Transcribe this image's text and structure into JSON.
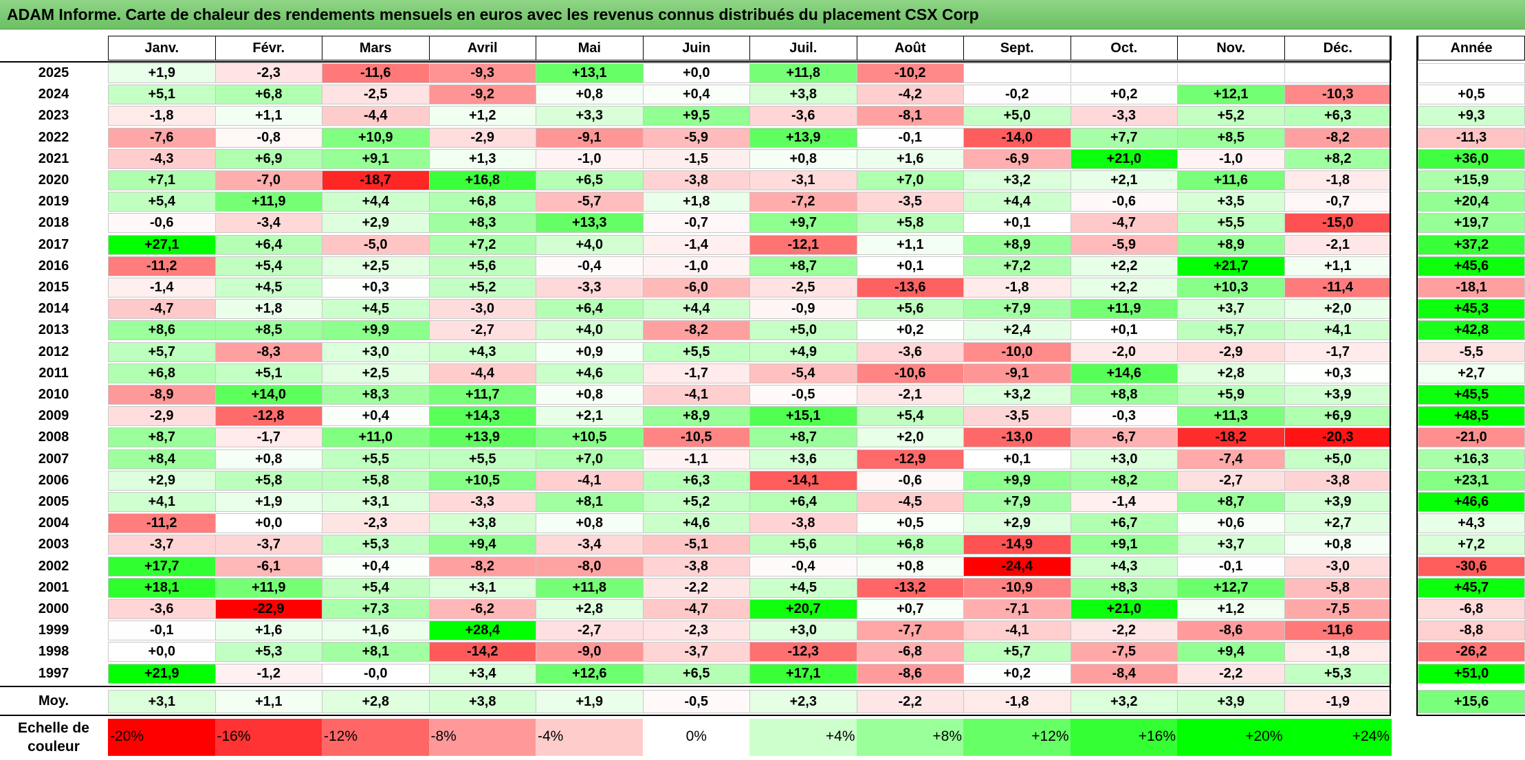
{
  "title": "ADAM Informe. Carte de chaleur des rendements mensuels en euros avec les revenus connus distribués du placement CSX Corp",
  "colors": {
    "title_bg": "#7acb71",
    "negative": "#ff0000",
    "positive": "#00ff00",
    "neutral": "#ffffff"
  },
  "chart_data": {
    "type": "heatmap",
    "title": "ADAM Informe. Carte de chaleur des rendements mensuels en euros avec les revenus connus distribués du placement CSX Corp",
    "months": [
      "Janv.",
      "Févr.",
      "Mars",
      "Avril",
      "Mai",
      "Juin",
      "Juil.",
      "Août",
      "Sept.",
      "Oct.",
      "Nov.",
      "Déc."
    ],
    "year_column_label": "Année",
    "average_row_label": "Moy.",
    "rows": [
      {
        "year": "2025",
        "values": [
          "+1,9",
          "-2,3",
          "-11,6",
          "-9,3",
          "+13,1",
          "+0,0",
          "+11,8",
          "-10,2",
          "",
          "",
          "",
          ""
        ],
        "annual": ""
      },
      {
        "year": "2024",
        "values": [
          "+5,1",
          "+6,8",
          "-2,5",
          "-9,2",
          "+0,8",
          "+0,4",
          "+3,8",
          "-4,2",
          "-0,2",
          "+0,2",
          "+12,1",
          "-10,3"
        ],
        "annual": "+0,5"
      },
      {
        "year": "2023",
        "values": [
          "-1,8",
          "+1,1",
          "-4,4",
          "+1,2",
          "+3,3",
          "+9,5",
          "-3,6",
          "-8,1",
          "+5,0",
          "-3,3",
          "+5,2",
          "+6,3"
        ],
        "annual": "+9,3"
      },
      {
        "year": "2022",
        "values": [
          "-7,6",
          "-0,8",
          "+10,9",
          "-2,9",
          "-9,1",
          "-5,9",
          "+13,9",
          "-0,1",
          "-14,0",
          "+7,7",
          "+8,5",
          "-8,2"
        ],
        "annual": "-11,3"
      },
      {
        "year": "2021",
        "values": [
          "-4,3",
          "+6,9",
          "+9,1",
          "+1,3",
          "-1,0",
          "-1,5",
          "+0,8",
          "+1,6",
          "-6,9",
          "+21,0",
          "-1,0",
          "+8,2"
        ],
        "annual": "+36,0"
      },
      {
        "year": "2020",
        "values": [
          "+7,1",
          "-7,0",
          "-18,7",
          "+16,8",
          "+6,5",
          "-3,8",
          "-3,1",
          "+7,0",
          "+3,2",
          "+2,1",
          "+11,6",
          "-1,8"
        ],
        "annual": "+15,9"
      },
      {
        "year": "2019",
        "values": [
          "+5,4",
          "+11,9",
          "+4,4",
          "+6,8",
          "-5,7",
          "+1,8",
          "-7,2",
          "-3,5",
          "+4,4",
          "-0,6",
          "+3,5",
          "-0,7"
        ],
        "annual": "+20,4"
      },
      {
        "year": "2018",
        "values": [
          "-0,6",
          "-3,4",
          "+2,9",
          "+8,3",
          "+13,3",
          "-0,7",
          "+9,7",
          "+5,8",
          "+0,1",
          "-4,7",
          "+5,5",
          "-15,0"
        ],
        "annual": "+19,7"
      },
      {
        "year": "2017",
        "values": [
          "+27,1",
          "+6,4",
          "-5,0",
          "+7,2",
          "+4,0",
          "-1,4",
          "-12,1",
          "+1,1",
          "+8,9",
          "-5,9",
          "+8,9",
          "-2,1"
        ],
        "annual": "+37,2"
      },
      {
        "year": "2016",
        "values": [
          "-11,2",
          "+5,4",
          "+2,5",
          "+5,6",
          "-0,4",
          "-1,0",
          "+8,7",
          "+0,1",
          "+7,2",
          "+2,2",
          "+21,7",
          "+1,1"
        ],
        "annual": "+45,6"
      },
      {
        "year": "2015",
        "values": [
          "-1,4",
          "+4,5",
          "+0,3",
          "+5,2",
          "-3,3",
          "-6,0",
          "-2,5",
          "-13,6",
          "-1,8",
          "+2,2",
          "+10,3",
          "-11,4"
        ],
        "annual": "-18,1"
      },
      {
        "year": "2014",
        "values": [
          "-4,7",
          "+1,8",
          "+4,5",
          "-3,0",
          "+6,4",
          "+4,4",
          "-0,9",
          "+5,6",
          "+7,9",
          "+11,9",
          "+3,7",
          "+2,0"
        ],
        "annual": "+45,3"
      },
      {
        "year": "2013",
        "values": [
          "+8,6",
          "+8,5",
          "+9,9",
          "-2,7",
          "+4,0",
          "-8,2",
          "+5,0",
          "+0,2",
          "+2,4",
          "+0,1",
          "+5,7",
          "+4,1"
        ],
        "annual": "+42,8"
      },
      {
        "year": "2012",
        "values": [
          "+5,7",
          "-8,3",
          "+3,0",
          "+4,3",
          "+0,9",
          "+5,5",
          "+4,9",
          "-3,6",
          "-10,0",
          "-2,0",
          "-2,9",
          "-1,7"
        ],
        "annual": "-5,5"
      },
      {
        "year": "2011",
        "values": [
          "+6,8",
          "+5,1",
          "+2,5",
          "-4,4",
          "+4,6",
          "-1,7",
          "-5,4",
          "-10,6",
          "-9,1",
          "+14,6",
          "+2,8",
          "+0,3"
        ],
        "annual": "+2,7"
      },
      {
        "year": "2010",
        "values": [
          "-8,9",
          "+14,0",
          "+8,3",
          "+11,7",
          "+0,8",
          "-4,1",
          "-0,5",
          "-2,1",
          "+3,2",
          "+8,8",
          "+5,9",
          "+3,9"
        ],
        "annual": "+45,5"
      },
      {
        "year": "2009",
        "values": [
          "-2,9",
          "-12,8",
          "+0,4",
          "+14,3",
          "+2,1",
          "+8,9",
          "+15,1",
          "+5,4",
          "-3,5",
          "-0,3",
          "+11,3",
          "+6,9"
        ],
        "annual": "+48,5"
      },
      {
        "year": "2008",
        "values": [
          "+8,7",
          "-1,7",
          "+11,0",
          "+13,9",
          "+10,5",
          "-10,5",
          "+8,7",
          "+2,0",
          "-13,0",
          "-6,7",
          "-18,2",
          "-20,3"
        ],
        "annual": "-21,0"
      },
      {
        "year": "2007",
        "values": [
          "+8,4",
          "+0,8",
          "+5,5",
          "+5,5",
          "+7,0",
          "-1,1",
          "+3,6",
          "-12,9",
          "+0,1",
          "+3,0",
          "-7,4",
          "+5,0"
        ],
        "annual": "+16,3"
      },
      {
        "year": "2006",
        "values": [
          "+2,9",
          "+5,8",
          "+5,8",
          "+10,5",
          "-4,1",
          "+6,3",
          "-14,1",
          "-0,6",
          "+9,9",
          "+8,2",
          "-2,7",
          "-3,8"
        ],
        "annual": "+23,1"
      },
      {
        "year": "2005",
        "values": [
          "+4,1",
          "+1,9",
          "+3,1",
          "-3,3",
          "+8,1",
          "+5,2",
          "+6,4",
          "-4,5",
          "+7,9",
          "-1,4",
          "+8,7",
          "+3,9"
        ],
        "annual": "+46,6"
      },
      {
        "year": "2004",
        "values": [
          "-11,2",
          "+0,0",
          "-2,3",
          "+3,8",
          "+0,8",
          "+4,6",
          "-3,8",
          "+0,5",
          "+2,9",
          "+6,7",
          "+0,6",
          "+2,7"
        ],
        "annual": "+4,3"
      },
      {
        "year": "2003",
        "values": [
          "-3,7",
          "-3,7",
          "+5,3",
          "+9,4",
          "-3,4",
          "-5,1",
          "+5,6",
          "+6,8",
          "-14,9",
          "+9,1",
          "+3,7",
          "+0,8"
        ],
        "annual": "+7,2"
      },
      {
        "year": "2002",
        "values": [
          "+17,7",
          "-6,1",
          "+0,4",
          "-8,2",
          "-8,0",
          "-3,8",
          "-0,4",
          "+0,8",
          "-24,4",
          "+4,3",
          "-0,1",
          "-3,0"
        ],
        "annual": "-30,6"
      },
      {
        "year": "2001",
        "values": [
          "+18,1",
          "+11,9",
          "+5,4",
          "+3,1",
          "+11,8",
          "-2,2",
          "+4,5",
          "-13,2",
          "-10,9",
          "+8,3",
          "+12,7",
          "-5,8"
        ],
        "annual": "+45,7"
      },
      {
        "year": "2000",
        "values": [
          "-3,6",
          "-22,9",
          "+7,3",
          "-6,2",
          "+2,8",
          "-4,7",
          "+20,7",
          "+0,7",
          "-7,1",
          "+21,0",
          "+1,2",
          "-7,5"
        ],
        "annual": "-6,8"
      },
      {
        "year": "1999",
        "values": [
          "-0,1",
          "+1,6",
          "+1,6",
          "+28,4",
          "-2,7",
          "-2,3",
          "+3,0",
          "-7,7",
          "-4,1",
          "-2,2",
          "-8,6",
          "-11,6"
        ],
        "annual": "-8,8"
      },
      {
        "year": "1998",
        "values": [
          "+0,0",
          "+5,3",
          "+8,1",
          "-14,2",
          "-9,0",
          "-3,7",
          "-12,3",
          "-6,8",
          "+5,7",
          "-7,5",
          "+9,4",
          "-1,8"
        ],
        "annual": "-26,2"
      },
      {
        "year": "1997",
        "values": [
          "+21,9",
          "-1,2",
          "-0,0",
          "+3,4",
          "+12,6",
          "+6,5",
          "+17,1",
          "-8,6",
          "+0,2",
          "-8,4",
          "-2,2",
          "+5,3"
        ],
        "annual": "+51,0"
      }
    ],
    "averages": [
      "+3,1",
      "+1,1",
      "+2,8",
      "+3,8",
      "+1,9",
      "-0,5",
      "+2,3",
      "-2,2",
      "-1,8",
      "+3,2",
      "+3,9",
      "-1,9"
    ],
    "average_annual": "+15,6",
    "color_scale": {
      "label": "Echelle de couleur",
      "steps": [
        {
          "label": "-20%",
          "value": -20
        },
        {
          "label": "-16%",
          "value": -16
        },
        {
          "label": "-12%",
          "value": -12
        },
        {
          "label": "-8%",
          "value": -8
        },
        {
          "label": "-4%",
          "value": -4
        },
        {
          "label": "0%",
          "value": 0
        },
        {
          "label": "+4%",
          "value": 4
        },
        {
          "label": "+8%",
          "value": 8
        },
        {
          "label": "+12%",
          "value": 12
        },
        {
          "label": "+16%",
          "value": 16
        },
        {
          "label": "+20%",
          "value": 20
        },
        {
          "label": "+24%",
          "value": 24
        }
      ]
    }
  }
}
